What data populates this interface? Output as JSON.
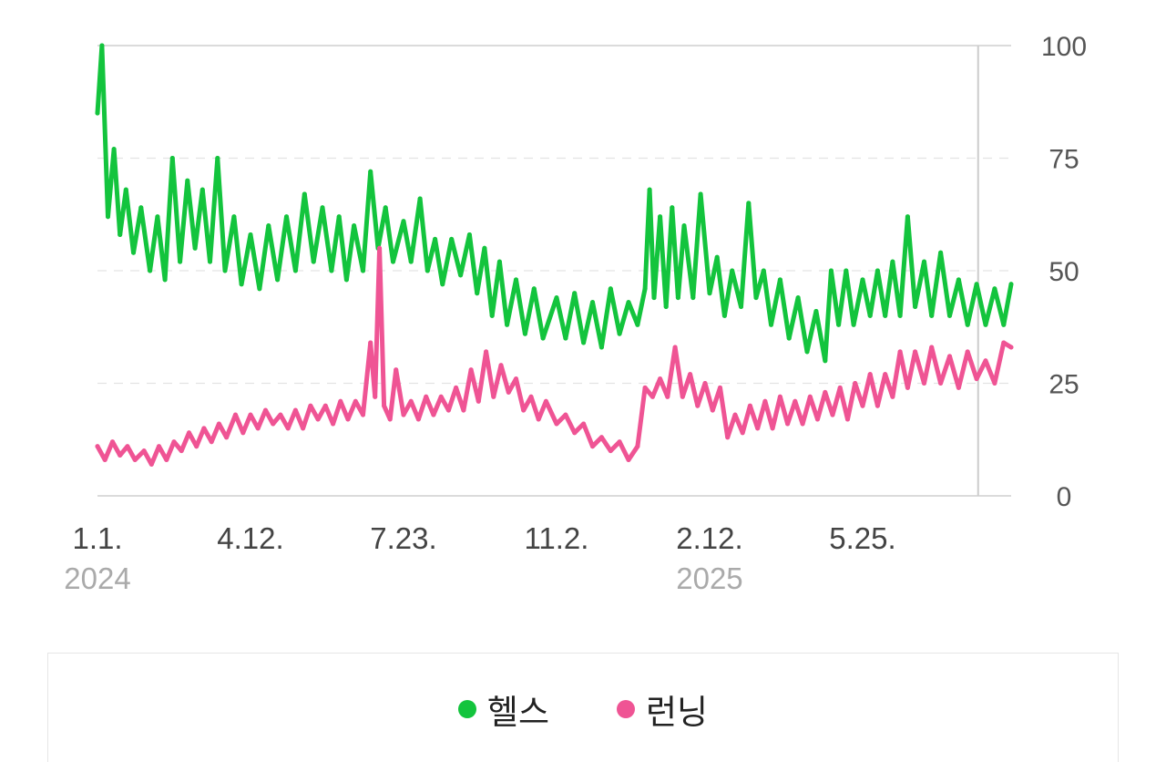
{
  "chart_data": {
    "type": "line",
    "title": "",
    "xlabel": "",
    "ylabel": "",
    "ylim": [
      0,
      100
    ],
    "y_ticks": [
      "0",
      "25",
      "50",
      "75",
      "100"
    ],
    "y_axis_side": "right",
    "grid": "horizontal dashed",
    "legend_position": "bottom",
    "x_ticks": [
      {
        "label": "1.1.",
        "year": "2024",
        "date": "2024-01-01"
      },
      {
        "label": "4.12.",
        "year": "",
        "date": "2024-04-12"
      },
      {
        "label": "7.23.",
        "year": "",
        "date": "2024-07-23"
      },
      {
        "label": "11.2.",
        "year": "",
        "date": "2024-11-02"
      },
      {
        "label": "2.12.",
        "year": "2025",
        "date": "2025-02-12"
      },
      {
        "label": "5.25.",
        "year": "",
        "date": "2025-05-25"
      }
    ],
    "x_range": [
      "2024-01-01",
      "2025-09-01"
    ],
    "marker_date": "2025-08-10",
    "series": [
      {
        "name": "헬스",
        "color": "#13c43d",
        "points": [
          [
            "2024-01-01",
            85
          ],
          [
            "2024-01-04",
            100
          ],
          [
            "2024-01-08",
            62
          ],
          [
            "2024-01-12",
            77
          ],
          [
            "2024-01-16",
            58
          ],
          [
            "2024-01-20",
            68
          ],
          [
            "2024-01-25",
            54
          ],
          [
            "2024-01-30",
            64
          ],
          [
            "2024-02-05",
            50
          ],
          [
            "2024-02-10",
            62
          ],
          [
            "2024-02-15",
            48
          ],
          [
            "2024-02-20",
            75
          ],
          [
            "2024-02-25",
            52
          ],
          [
            "2024-03-01",
            70
          ],
          [
            "2024-03-06",
            55
          ],
          [
            "2024-03-11",
            68
          ],
          [
            "2024-03-16",
            52
          ],
          [
            "2024-03-21",
            75
          ],
          [
            "2024-03-26",
            50
          ],
          [
            "2024-04-01",
            62
          ],
          [
            "2024-04-06",
            47
          ],
          [
            "2024-04-12",
            58
          ],
          [
            "2024-04-18",
            46
          ],
          [
            "2024-04-24",
            60
          ],
          [
            "2024-04-30",
            48
          ],
          [
            "2024-05-06",
            62
          ],
          [
            "2024-05-12",
            50
          ],
          [
            "2024-05-18",
            67
          ],
          [
            "2024-05-24",
            52
          ],
          [
            "2024-05-30",
            64
          ],
          [
            "2024-06-05",
            50
          ],
          [
            "2024-06-10",
            62
          ],
          [
            "2024-06-15",
            48
          ],
          [
            "2024-06-20",
            60
          ],
          [
            "2024-06-26",
            50
          ],
          [
            "2024-07-01",
            72
          ],
          [
            "2024-07-06",
            55
          ],
          [
            "2024-07-11",
            64
          ],
          [
            "2024-07-16",
            52
          ],
          [
            "2024-07-23",
            61
          ],
          [
            "2024-07-28",
            52
          ],
          [
            "2024-08-03",
            66
          ],
          [
            "2024-08-08",
            50
          ],
          [
            "2024-08-13",
            57
          ],
          [
            "2024-08-18",
            47
          ],
          [
            "2024-08-24",
            57
          ],
          [
            "2024-08-30",
            49
          ],
          [
            "2024-09-05",
            58
          ],
          [
            "2024-09-10",
            45
          ],
          [
            "2024-09-15",
            55
          ],
          [
            "2024-09-20",
            40
          ],
          [
            "2024-09-25",
            52
          ],
          [
            "2024-09-30",
            38
          ],
          [
            "2024-10-06",
            48
          ],
          [
            "2024-10-12",
            36
          ],
          [
            "2024-10-18",
            46
          ],
          [
            "2024-10-24",
            35
          ],
          [
            "2024-11-02",
            44
          ],
          [
            "2024-11-08",
            35
          ],
          [
            "2024-11-14",
            45
          ],
          [
            "2024-11-20",
            34
          ],
          [
            "2024-11-26",
            43
          ],
          [
            "2024-12-02",
            33
          ],
          [
            "2024-12-08",
            46
          ],
          [
            "2024-12-14",
            36
          ],
          [
            "2024-12-20",
            43
          ],
          [
            "2024-12-26",
            38
          ],
          [
            "2024-12-31",
            46
          ],
          [
            "2025-01-03",
            68
          ],
          [
            "2025-01-06",
            44
          ],
          [
            "2025-01-10",
            62
          ],
          [
            "2025-01-14",
            42
          ],
          [
            "2025-01-18",
            64
          ],
          [
            "2025-01-22",
            44
          ],
          [
            "2025-01-26",
            60
          ],
          [
            "2025-02-01",
            44
          ],
          [
            "2025-02-06",
            67
          ],
          [
            "2025-02-12",
            45
          ],
          [
            "2025-02-17",
            53
          ],
          [
            "2025-02-22",
            40
          ],
          [
            "2025-02-27",
            50
          ],
          [
            "2025-03-05",
            42
          ],
          [
            "2025-03-10",
            65
          ],
          [
            "2025-03-15",
            44
          ],
          [
            "2025-03-20",
            50
          ],
          [
            "2025-03-25",
            38
          ],
          [
            "2025-03-31",
            48
          ],
          [
            "2025-04-06",
            35
          ],
          [
            "2025-04-12",
            44
          ],
          [
            "2025-04-18",
            32
          ],
          [
            "2025-04-24",
            41
          ],
          [
            "2025-04-30",
            30
          ],
          [
            "2025-05-04",
            50
          ],
          [
            "2025-05-09",
            38
          ],
          [
            "2025-05-14",
            50
          ],
          [
            "2025-05-19",
            38
          ],
          [
            "2025-05-25",
            48
          ],
          [
            "2025-05-30",
            40
          ],
          [
            "2025-06-04",
            50
          ],
          [
            "2025-06-09",
            40
          ],
          [
            "2025-06-14",
            52
          ],
          [
            "2025-06-19",
            40
          ],
          [
            "2025-06-24",
            62
          ],
          [
            "2025-06-29",
            42
          ],
          [
            "2025-07-05",
            52
          ],
          [
            "2025-07-10",
            40
          ],
          [
            "2025-07-16",
            54
          ],
          [
            "2025-07-22",
            40
          ],
          [
            "2025-07-28",
            48
          ],
          [
            "2025-08-03",
            38
          ],
          [
            "2025-08-09",
            47
          ],
          [
            "2025-08-15",
            38
          ],
          [
            "2025-08-21",
            46
          ],
          [
            "2025-08-27",
            38
          ],
          [
            "2025-09-01",
            47
          ]
        ]
      },
      {
        "name": "런닝",
        "color": "#ef5494",
        "points": [
          [
            "2024-01-01",
            11
          ],
          [
            "2024-01-06",
            8
          ],
          [
            "2024-01-11",
            12
          ],
          [
            "2024-01-16",
            9
          ],
          [
            "2024-01-21",
            11
          ],
          [
            "2024-01-26",
            8
          ],
          [
            "2024-02-01",
            10
          ],
          [
            "2024-02-06",
            7
          ],
          [
            "2024-02-11",
            11
          ],
          [
            "2024-02-16",
            8
          ],
          [
            "2024-02-21",
            12
          ],
          [
            "2024-02-26",
            10
          ],
          [
            "2024-03-02",
            14
          ],
          [
            "2024-03-07",
            11
          ],
          [
            "2024-03-12",
            15
          ],
          [
            "2024-03-17",
            12
          ],
          [
            "2024-03-22",
            16
          ],
          [
            "2024-03-27",
            13
          ],
          [
            "2024-04-02",
            18
          ],
          [
            "2024-04-07",
            14
          ],
          [
            "2024-04-12",
            18
          ],
          [
            "2024-04-17",
            15
          ],
          [
            "2024-04-22",
            19
          ],
          [
            "2024-04-27",
            16
          ],
          [
            "2024-05-02",
            18
          ],
          [
            "2024-05-07",
            15
          ],
          [
            "2024-05-12",
            19
          ],
          [
            "2024-05-17",
            15
          ],
          [
            "2024-05-22",
            20
          ],
          [
            "2024-05-27",
            17
          ],
          [
            "2024-06-01",
            20
          ],
          [
            "2024-06-06",
            16
          ],
          [
            "2024-06-11",
            21
          ],
          [
            "2024-06-16",
            17
          ],
          [
            "2024-06-21",
            21
          ],
          [
            "2024-06-26",
            18
          ],
          [
            "2024-07-01",
            34
          ],
          [
            "2024-07-04",
            22
          ],
          [
            "2024-07-07",
            55
          ],
          [
            "2024-07-10",
            20
          ],
          [
            "2024-07-14",
            17
          ],
          [
            "2024-07-18",
            28
          ],
          [
            "2024-07-23",
            18
          ],
          [
            "2024-07-28",
            21
          ],
          [
            "2024-08-02",
            17
          ],
          [
            "2024-08-07",
            22
          ],
          [
            "2024-08-12",
            18
          ],
          [
            "2024-08-17",
            22
          ],
          [
            "2024-08-22",
            19
          ],
          [
            "2024-08-27",
            24
          ],
          [
            "2024-09-01",
            19
          ],
          [
            "2024-09-06",
            28
          ],
          [
            "2024-09-11",
            21
          ],
          [
            "2024-09-16",
            32
          ],
          [
            "2024-09-21",
            22
          ],
          [
            "2024-09-26",
            29
          ],
          [
            "2024-10-01",
            23
          ],
          [
            "2024-10-06",
            26
          ],
          [
            "2024-10-11",
            19
          ],
          [
            "2024-10-16",
            22
          ],
          [
            "2024-10-21",
            17
          ],
          [
            "2024-10-26",
            21
          ],
          [
            "2024-11-02",
            16
          ],
          [
            "2024-11-08",
            18
          ],
          [
            "2024-11-14",
            14
          ],
          [
            "2024-11-20",
            16
          ],
          [
            "2024-11-26",
            11
          ],
          [
            "2024-12-02",
            13
          ],
          [
            "2024-12-08",
            10
          ],
          [
            "2024-12-14",
            12
          ],
          [
            "2024-12-20",
            8
          ],
          [
            "2024-12-26",
            11
          ],
          [
            "2024-12-31",
            24
          ],
          [
            "2025-01-05",
            22
          ],
          [
            "2025-01-10",
            26
          ],
          [
            "2025-01-15",
            22
          ],
          [
            "2025-01-20",
            33
          ],
          [
            "2025-01-25",
            22
          ],
          [
            "2025-01-30",
            27
          ],
          [
            "2025-02-04",
            20
          ],
          [
            "2025-02-09",
            25
          ],
          [
            "2025-02-14",
            19
          ],
          [
            "2025-02-19",
            24
          ],
          [
            "2025-02-24",
            13
          ],
          [
            "2025-03-01",
            18
          ],
          [
            "2025-03-06",
            14
          ],
          [
            "2025-03-11",
            20
          ],
          [
            "2025-03-16",
            15
          ],
          [
            "2025-03-21",
            21
          ],
          [
            "2025-03-26",
            15
          ],
          [
            "2025-03-31",
            22
          ],
          [
            "2025-04-05",
            16
          ],
          [
            "2025-04-10",
            21
          ],
          [
            "2025-04-15",
            16
          ],
          [
            "2025-04-20",
            22
          ],
          [
            "2025-04-25",
            17
          ],
          [
            "2025-04-30",
            23
          ],
          [
            "2025-05-05",
            18
          ],
          [
            "2025-05-10",
            24
          ],
          [
            "2025-05-15",
            17
          ],
          [
            "2025-05-20",
            25
          ],
          [
            "2025-05-25",
            20
          ],
          [
            "2025-05-30",
            27
          ],
          [
            "2025-06-04",
            20
          ],
          [
            "2025-06-09",
            27
          ],
          [
            "2025-06-14",
            22
          ],
          [
            "2025-06-19",
            32
          ],
          [
            "2025-06-24",
            24
          ],
          [
            "2025-06-29",
            32
          ],
          [
            "2025-07-05",
            25
          ],
          [
            "2025-07-10",
            33
          ],
          [
            "2025-07-16",
            25
          ],
          [
            "2025-07-22",
            31
          ],
          [
            "2025-07-28",
            24
          ],
          [
            "2025-08-03",
            32
          ],
          [
            "2025-08-09",
            26
          ],
          [
            "2025-08-15",
            30
          ],
          [
            "2025-08-21",
            25
          ],
          [
            "2025-08-27",
            34
          ],
          [
            "2025-09-01",
            33
          ]
        ]
      }
    ]
  }
}
